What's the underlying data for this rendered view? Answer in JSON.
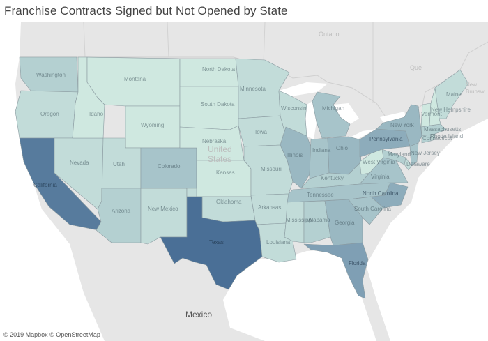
{
  "title": "Franchise Contracts Signed but Not Opened by State",
  "attribution": "© 2019 Mapbox © OpenStreetMap",
  "basemap_labels": {
    "country_center": "United\nStates",
    "mexico": "Mexico",
    "ontario": "Ontario",
    "quebec": "Que",
    "new_brunswick": "New\nBrunswi"
  },
  "colors": {
    "land": "#e6e6e6",
    "water": "#ffffff",
    "state_border": "#8a9aa0",
    "scale_low": "#cfe8e0",
    "scale_high": "#4a6f96"
  },
  "states": [
    {
      "id": "WA",
      "label": "Washington",
      "level": 2
    },
    {
      "id": "OR",
      "label": "Oregon",
      "level": 1
    },
    {
      "id": "CA",
      "label": "California",
      "level": 9
    },
    {
      "id": "NV",
      "label": "Nevada",
      "level": 1
    },
    {
      "id": "ID",
      "label": "Idaho",
      "level": 0
    },
    {
      "id": "MT",
      "label": "Montana",
      "level": 0
    },
    {
      "id": "WY",
      "label": "Wyoming",
      "level": 0
    },
    {
      "id": "UT",
      "label": "Utah",
      "level": 1
    },
    {
      "id": "AZ",
      "label": "Arizona",
      "level": 2
    },
    {
      "id": "NM",
      "label": "New Mexico",
      "level": 1
    },
    {
      "id": "CO",
      "label": "Colorado",
      "level": 3
    },
    {
      "id": "ND",
      "label": "North Dakota",
      "level": 0
    },
    {
      "id": "SD",
      "label": "South Dakota",
      "level": 0
    },
    {
      "id": "NE",
      "label": "Nebraska",
      "level": 0
    },
    {
      "id": "KS",
      "label": "Kansas",
      "level": 0
    },
    {
      "id": "OK",
      "label": "Oklahoma",
      "level": 1
    },
    {
      "id": "TX",
      "label": "Texas",
      "level": 10
    },
    {
      "id": "MN",
      "label": "Minnesota",
      "level": 1
    },
    {
      "id": "IA",
      "label": "Iowa",
      "level": 1
    },
    {
      "id": "MO",
      "label": "Missouri",
      "level": 1
    },
    {
      "id": "AR",
      "label": "Arkansas",
      "level": 1
    },
    {
      "id": "LA",
      "label": "Louisiana",
      "level": 1
    },
    {
      "id": "WI",
      "label": "Wisconsin",
      "level": 1
    },
    {
      "id": "IL",
      "label": "Illinois",
      "level": 4
    },
    {
      "id": "MI",
      "label": "Michigan",
      "level": 3
    },
    {
      "id": "IN",
      "label": "Indiana",
      "level": 3
    },
    {
      "id": "OH",
      "label": "Ohio",
      "level": 4
    },
    {
      "id": "KY",
      "label": "Kentucky",
      "level": 2
    },
    {
      "id": "TN",
      "label": "Tennessee",
      "level": 3
    },
    {
      "id": "MS",
      "label": "Mississippi",
      "level": 1
    },
    {
      "id": "AL",
      "label": "Alabama",
      "level": 2
    },
    {
      "id": "GA",
      "label": "Georgia",
      "level": 4
    },
    {
      "id": "FL",
      "label": "Florida",
      "level": 6
    },
    {
      "id": "SC",
      "label": "South Carolina",
      "level": 3
    },
    {
      "id": "NC",
      "label": "North Carolina",
      "level": 5
    },
    {
      "id": "VA",
      "label": "Virginia",
      "level": 3
    },
    {
      "id": "WV",
      "label": "West Virginia",
      "level": 0
    },
    {
      "id": "PA",
      "label": "Pennsylvania",
      "level": 5
    },
    {
      "id": "NY",
      "label": "New York",
      "level": 4
    },
    {
      "id": "NJ",
      "label": "New Jersey",
      "level": 3
    },
    {
      "id": "DE",
      "label": "Delaware",
      "level": 1
    },
    {
      "id": "MD",
      "label": "Maryland",
      "level": 2
    },
    {
      "id": "CT",
      "label": "Connecticut",
      "level": 2
    },
    {
      "id": "RI",
      "label": "Rhode Island",
      "level": 1
    },
    {
      "id": "MA",
      "label": "Massachusetts",
      "level": 2
    },
    {
      "id": "VT",
      "label": "Vermont",
      "level": 0
    },
    {
      "id": "NH",
      "label": "New Hampshire",
      "level": 0
    },
    {
      "id": "ME",
      "label": "Maine",
      "level": 1
    }
  ]
}
